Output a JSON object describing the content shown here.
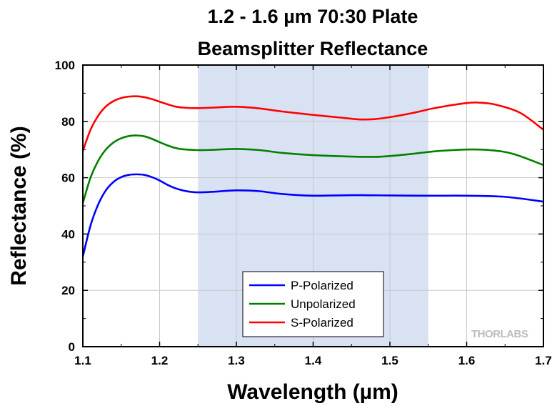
{
  "chart_data": {
    "type": "line",
    "title": [
      "1.2 - 1.6 µm 70:30 Plate",
      "Beamsplitter Reflectance"
    ],
    "xlabel": "Wavelength (µm)",
    "ylabel": "Reflectance (%)",
    "xlim": [
      1.1,
      1.7
    ],
    "ylim": [
      0,
      100
    ],
    "x_ticks": [
      "1.1",
      "1.2",
      "1.3",
      "1.4",
      "1.5",
      "1.6",
      "1.7"
    ],
    "y_ticks": [
      "0",
      "20",
      "40",
      "60",
      "80",
      "100"
    ],
    "grid": true,
    "shaded_region": [
      1.25,
      1.55
    ],
    "shade_color": "#d9e2f3",
    "legend_position": "bottom-center",
    "series": [
      {
        "name": "P-Polarized",
        "color": "#0000ff",
        "points": [
          [
            1.1,
            32
          ],
          [
            1.11,
            43
          ],
          [
            1.12,
            50.5
          ],
          [
            1.13,
            55.5
          ],
          [
            1.14,
            58.5
          ],
          [
            1.15,
            60.2
          ],
          [
            1.16,
            61
          ],
          [
            1.17,
            61.2
          ],
          [
            1.18,
            61
          ],
          [
            1.19,
            60.2
          ],
          [
            1.2,
            59
          ],
          [
            1.21,
            57.5
          ],
          [
            1.22,
            56.3
          ],
          [
            1.23,
            55.5
          ],
          [
            1.24,
            55
          ],
          [
            1.25,
            54.8
          ],
          [
            1.27,
            55
          ],
          [
            1.3,
            55.5
          ],
          [
            1.33,
            55.2
          ],
          [
            1.36,
            54.2
          ],
          [
            1.4,
            53.6
          ],
          [
            1.45,
            53.8
          ],
          [
            1.5,
            53.7
          ],
          [
            1.55,
            53.6
          ],
          [
            1.6,
            53.6
          ],
          [
            1.65,
            53.2
          ],
          [
            1.7,
            51.5
          ]
        ]
      },
      {
        "name": "Unpolarized",
        "color": "#008000",
        "points": [
          [
            1.1,
            51
          ],
          [
            1.11,
            60
          ],
          [
            1.12,
            66
          ],
          [
            1.13,
            70
          ],
          [
            1.14,
            72.5
          ],
          [
            1.15,
            74
          ],
          [
            1.16,
            74.8
          ],
          [
            1.17,
            75
          ],
          [
            1.18,
            74.7
          ],
          [
            1.19,
            73.8
          ],
          [
            1.2,
            72.6
          ],
          [
            1.21,
            71.5
          ],
          [
            1.22,
            70.6
          ],
          [
            1.23,
            70.1
          ],
          [
            1.25,
            69.8
          ],
          [
            1.27,
            69.9
          ],
          [
            1.3,
            70.2
          ],
          [
            1.33,
            69.8
          ],
          [
            1.36,
            68.8
          ],
          [
            1.4,
            68
          ],
          [
            1.45,
            67.5
          ],
          [
            1.48,
            67.4
          ],
          [
            1.5,
            67.7
          ],
          [
            1.53,
            68.5
          ],
          [
            1.56,
            69.4
          ],
          [
            1.6,
            70
          ],
          [
            1.63,
            69.8
          ],
          [
            1.66,
            68.5
          ],
          [
            1.7,
            64.5
          ]
        ]
      },
      {
        "name": "S-Polarized",
        "color": "#ff0000",
        "points": [
          [
            1.1,
            69.5
          ],
          [
            1.11,
            77
          ],
          [
            1.12,
            82
          ],
          [
            1.13,
            85.3
          ],
          [
            1.14,
            87.2
          ],
          [
            1.15,
            88.3
          ],
          [
            1.16,
            88.8
          ],
          [
            1.17,
            88.9
          ],
          [
            1.18,
            88.6
          ],
          [
            1.19,
            87.9
          ],
          [
            1.2,
            87
          ],
          [
            1.21,
            86.1
          ],
          [
            1.22,
            85.3
          ],
          [
            1.23,
            84.9
          ],
          [
            1.25,
            84.7
          ],
          [
            1.27,
            84.9
          ],
          [
            1.3,
            85.2
          ],
          [
            1.33,
            84.6
          ],
          [
            1.36,
            83.5
          ],
          [
            1.4,
            82.3
          ],
          [
            1.43,
            81.5
          ],
          [
            1.46,
            80.7
          ],
          [
            1.48,
            80.8
          ],
          [
            1.5,
            81.5
          ],
          [
            1.53,
            83
          ],
          [
            1.56,
            84.8
          ],
          [
            1.6,
            86.5
          ],
          [
            1.62,
            86.6
          ],
          [
            1.64,
            85.8
          ],
          [
            1.67,
            83
          ],
          [
            1.7,
            77
          ]
        ]
      }
    ]
  },
  "watermark": "THORLABS"
}
